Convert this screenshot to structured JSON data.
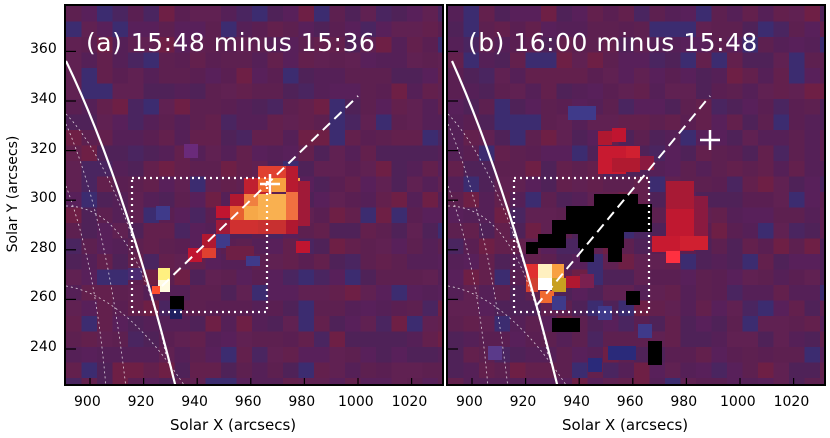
{
  "panels": [
    {
      "title": "(a) 15:48 minus 15:36"
    },
    {
      "title": "(b) 16:00 minus 15:48"
    }
  ],
  "axes": {
    "xlabel": "Solar X (arcsecs)",
    "ylabel": "Solar Y (arcsecs)",
    "xticks": [
      "900",
      "920",
      "940",
      "960",
      "980",
      "1000",
      "1020"
    ],
    "yticks": [
      "240",
      "260",
      "280",
      "300",
      "320",
      "340",
      "360"
    ]
  },
  "colors": {
    "background": "#5a1f52",
    "positive_low": "#c01530",
    "positive_high": "#ffd060",
    "negative": "#000000",
    "negative_low": "#3a3a9a"
  }
}
